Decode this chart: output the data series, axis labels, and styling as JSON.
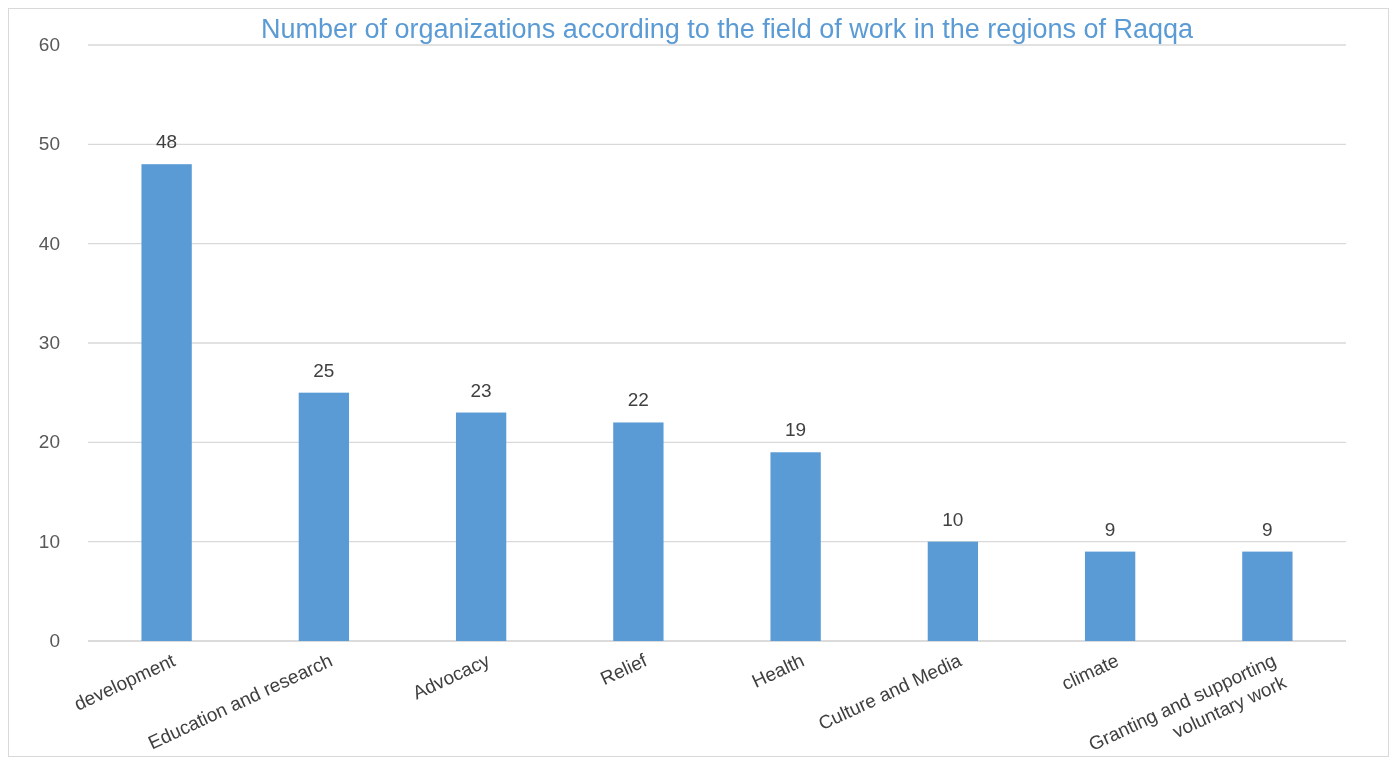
{
  "chart_data": {
    "type": "bar",
    "title": "Number of organizations according to the field of work in the regions of Raqqa",
    "categories": [
      "development",
      "Education and research",
      "Advocacy",
      "Relief",
      "Health",
      "Culture and Media",
      "climate",
      "Granting and supporting voluntary work"
    ],
    "values": [
      48,
      25,
      23,
      22,
      19,
      10,
      9,
      9
    ],
    "color": "#5b9bd5",
    "ylim": [
      0,
      60
    ],
    "yticks": [
      0,
      10,
      20,
      30,
      40,
      50,
      60
    ],
    "grid": "y",
    "data_labels": true
  }
}
